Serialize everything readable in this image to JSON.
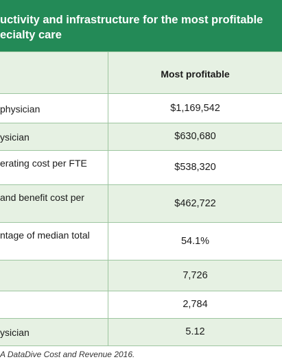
{
  "header": {
    "title_lines": [
      "uctivity and infrastructure for the most profitable",
      "ecialty care"
    ]
  },
  "table": {
    "column_header": "Most profitable",
    "rows": [
      {
        "label": "physician",
        "value": "$1,169,542"
      },
      {
        "label": "ysician",
        "value": "$630,680"
      },
      {
        "label": "erating cost per FTE",
        "value": "$538,320"
      },
      {
        "label": "and benefit cost per",
        "value": "$462,722"
      },
      {
        "label": "ntage of median total",
        "value": "54.1%"
      },
      {
        "value": "7,726"
      },
      {
        "value": "2,784"
      },
      {
        "label": "ysician",
        "value": "5.12"
      }
    ]
  },
  "footnote": "A DataDive Cost and Revenue 2016."
}
